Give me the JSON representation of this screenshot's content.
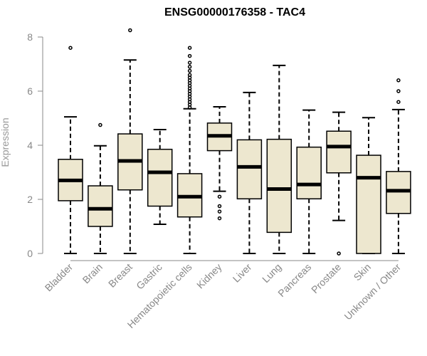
{
  "chart_data": {
    "type": "boxplot",
    "title": "ENSG00000176358 - TAC4",
    "xlabel": "",
    "ylabel": "Expression",
    "ylim": [
      0,
      8
    ],
    "yticks": [
      0,
      2,
      4,
      6,
      8
    ],
    "grid": false,
    "box_fill": "#ede7cf",
    "stroke_color": "#000000",
    "axis_color": "#888888",
    "categories": [
      "Bladder",
      "Brain",
      "Breast",
      "Gastric",
      "Hematopoietic cells",
      "Kidney",
      "Liver",
      "Lung",
      "Pancreas",
      "Prostate",
      "Skin",
      "Unknown / Other"
    ],
    "boxes": [
      {
        "min": 0,
        "q1": 1.95,
        "median": 2.7,
        "q3": 3.48,
        "max": 5.05,
        "outliers": [
          7.6
        ]
      },
      {
        "min": 0,
        "q1": 1.0,
        "median": 1.65,
        "q3": 2.5,
        "max": 3.98,
        "outliers": [
          4.75
        ]
      },
      {
        "min": 0,
        "q1": 2.35,
        "median": 3.42,
        "q3": 4.42,
        "max": 7.15,
        "outliers": [
          8.25
        ]
      },
      {
        "min": 1.08,
        "q1": 1.75,
        "median": 3.0,
        "q3": 3.85,
        "max": 4.58,
        "outliers": []
      },
      {
        "min": 0,
        "q1": 1.35,
        "median": 2.1,
        "q3": 2.95,
        "max": 5.35,
        "outliers": [
          5.4,
          5.5,
          5.6,
          5.7,
          5.8,
          5.9,
          6.0,
          6.1,
          6.2,
          6.3,
          6.4,
          6.5,
          6.6,
          6.75,
          6.9,
          7.05,
          7.3,
          7.6
        ]
      },
      {
        "min": 2.3,
        "q1": 3.8,
        "median": 4.35,
        "q3": 4.82,
        "max": 5.42,
        "outliers": [
          2.1,
          1.75,
          1.55,
          1.3
        ]
      },
      {
        "min": 0,
        "q1": 2.02,
        "median": 3.2,
        "q3": 4.2,
        "max": 5.95,
        "outliers": []
      },
      {
        "min": 0,
        "q1": 0.78,
        "median": 2.38,
        "q3": 4.22,
        "max": 6.95,
        "outliers": []
      },
      {
        "min": 0,
        "q1": 2.02,
        "median": 2.55,
        "q3": 3.93,
        "max": 5.3,
        "outliers": []
      },
      {
        "min": 1.22,
        "q1": 2.98,
        "median": 3.95,
        "q3": 4.52,
        "max": 5.22,
        "outliers": [
          0.0
        ]
      },
      {
        "min": 0,
        "q1": 0.0,
        "median": 2.8,
        "q3": 3.63,
        "max": 5.02,
        "outliers": []
      },
      {
        "min": 0,
        "q1": 1.48,
        "median": 2.32,
        "q3": 3.03,
        "max": 5.32,
        "outliers": [
          5.6,
          6.0,
          6.4
        ]
      }
    ]
  }
}
